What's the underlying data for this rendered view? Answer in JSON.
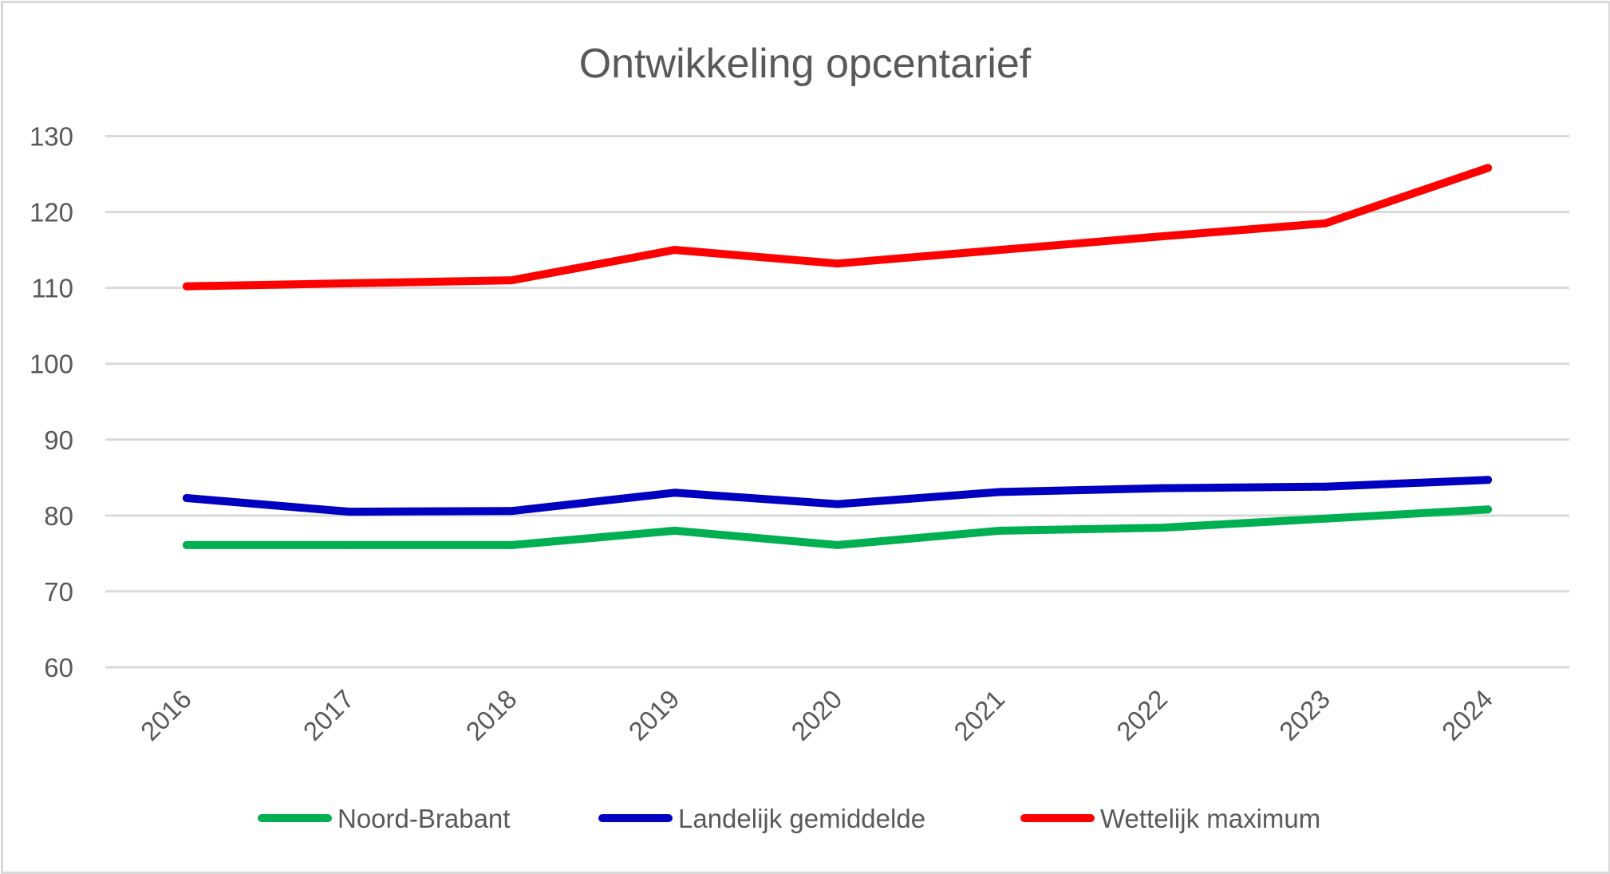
{
  "chart_data": {
    "type": "line",
    "title": "Ontwikkeling opcentarief",
    "xlabel": "",
    "ylabel": "",
    "categories": [
      "2016",
      "2017",
      "2018",
      "2019",
      "2020",
      "2021",
      "2022",
      "2023",
      "2024"
    ],
    "ylim": [
      60,
      130
    ],
    "yticks": [
      60,
      70,
      80,
      90,
      100,
      110,
      120,
      130
    ],
    "ytick_labels": [
      "60",
      "70",
      "80",
      "90",
      "100",
      "110",
      "120",
      "130"
    ],
    "grid": true,
    "legend_position": "bottom",
    "series": [
      {
        "name": "Noord-Brabant",
        "color": "#00b050",
        "values": [
          76.1,
          76.1,
          76.1,
          78.0,
          76.1,
          78.0,
          78.4,
          79.6,
          80.8
        ]
      },
      {
        "name": "Landelijk gemiddelde",
        "color": "#0000c0",
        "values": [
          82.3,
          80.5,
          80.6,
          83.0,
          81.5,
          83.1,
          83.6,
          83.8,
          84.7
        ]
      },
      {
        "name": "Wettelijk maximum",
        "color": "#ff0000",
        "values": [
          110.2,
          110.6,
          111.0,
          115.0,
          113.2,
          115.0,
          116.8,
          118.5,
          125.8
        ]
      }
    ]
  }
}
